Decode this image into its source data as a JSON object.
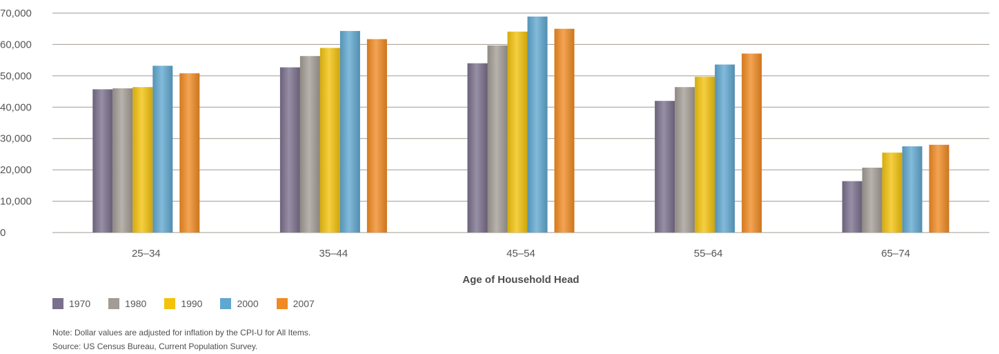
{
  "colors": {
    "1970": "#7a6f8c",
    "1980": "#a39c94",
    "1990": "#f2c20c",
    "2000": "#5fa7cf",
    "2007": "#f08a22",
    "gridline": "#a09a90"
  },
  "chart_data": {
    "type": "bar",
    "title": "",
    "xlabel": "Age of Household Head",
    "ylabel": "",
    "categories": [
      "25–34",
      "35–44",
      "45–54",
      "55–64",
      "65–74"
    ],
    "ylim": [
      0,
      70000
    ],
    "yticks": [
      "0",
      "10,000",
      "20,000",
      "30,000",
      "40,000",
      "50,000",
      "60,000",
      "70,000"
    ],
    "grid": true,
    "legend_position": "bottom-left",
    "series": [
      {
        "name": "1970",
        "values": [
          45700,
          52700,
          54000,
          42000,
          16400
        ]
      },
      {
        "name": "1980",
        "values": [
          46000,
          56300,
          59700,
          46400,
          20700
        ]
      },
      {
        "name": "1990",
        "values": [
          46400,
          58900,
          64100,
          49700,
          25500
        ]
      },
      {
        "name": "2000",
        "values": [
          53200,
          64300,
          68900,
          53600,
          27500
        ]
      },
      {
        "name": "2007",
        "values": [
          50800,
          61700,
          65000,
          57100,
          28000
        ]
      }
    ]
  },
  "notes": {
    "note": "Note: Dollar values are adjusted for inflation by the CPI-U for All Items.",
    "source": "Source: US Census Bureau, Current Population Survey."
  }
}
